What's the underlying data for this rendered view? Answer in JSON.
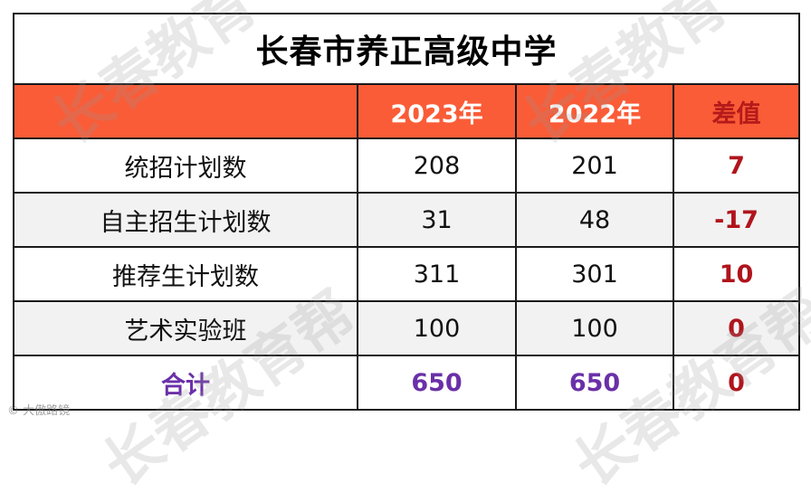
{
  "title": "长春市养正高级中学",
  "headers": [
    "",
    "2023年",
    "2022年",
    "差值"
  ],
  "rows": [
    {
      "label": "统招计划数",
      "y2023": "208",
      "y2022": "201",
      "diff": "7"
    },
    {
      "label": "自主招生计划数",
      "y2023": "31",
      "y2022": "48",
      "diff": "-17"
    },
    {
      "label": "推荐生计划数",
      "y2023": "311",
      "y2022": "301",
      "diff": "10"
    },
    {
      "label": "艺术实验班",
      "y2023": "100",
      "y2022": "100",
      "diff": "0"
    }
  ],
  "total": {
    "label": "合计",
    "y2023": "650",
    "y2022": "650",
    "diff": "0"
  },
  "watermarks": [
    "长春教育",
    "长春教育",
    "长春教育帮",
    "长春教育帮"
  ],
  "credit": "© 大傲路镜",
  "colors": {
    "header_bg": "#fa5c37",
    "diff_text": "#b0141c",
    "total_text": "#6a30a8"
  }
}
